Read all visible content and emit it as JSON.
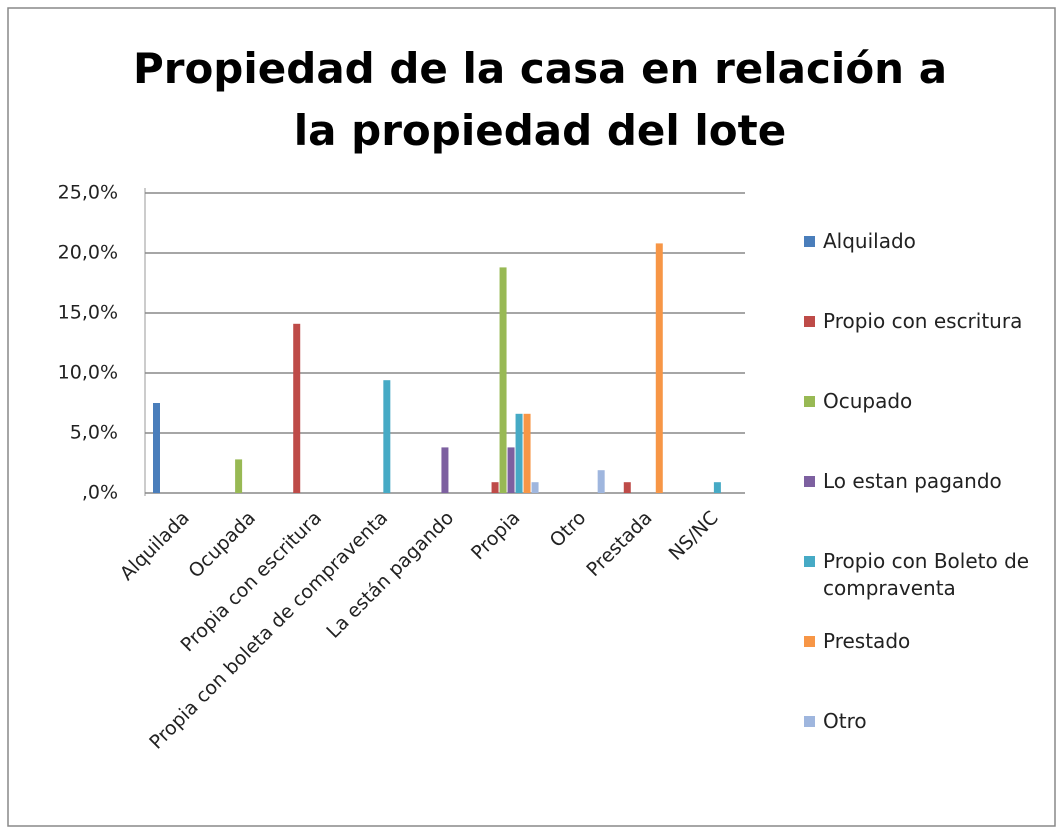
{
  "chart_data": {
    "type": "bar",
    "title": "Propiedad de la casa en relación a la propiedad del lote",
    "categories": [
      "Alquilada",
      "Ocupada",
      "Propia con escritura",
      "Propia con boleta de compraventa",
      "La están pagando",
      "Propia",
      "Otro",
      "Prestada",
      "NS/NC"
    ],
    "series": [
      {
        "name": "Alquilado",
        "color": "#4a7ebb",
        "values": [
          7.5,
          0,
          0,
          0,
          0,
          0,
          0,
          0,
          0
        ]
      },
      {
        "name": "Propio con escritura",
        "color": "#be4b48",
        "values": [
          0,
          0,
          14.1,
          0,
          0,
          0.9,
          0,
          0.9,
          0
        ]
      },
      {
        "name": "Ocupado",
        "color": "#98b954",
        "values": [
          0,
          2.8,
          0,
          0,
          0,
          18.8,
          0,
          0,
          0
        ]
      },
      {
        "name": "Lo estan pagando",
        "color": "#7d60a0",
        "values": [
          0,
          0,
          0,
          0,
          3.8,
          3.8,
          0,
          0,
          0
        ]
      },
      {
        "name": "Propio con Boleto de compraventa",
        "color": "#46aac5",
        "values": [
          0,
          0,
          0,
          9.4,
          0,
          6.6,
          0,
          0,
          0.9
        ]
      },
      {
        "name": "Prestado",
        "color": "#f79646",
        "values": [
          0,
          0,
          0,
          0,
          0,
          6.6,
          0,
          20.8,
          0
        ]
      },
      {
        "name": "Otro",
        "color": "#9fb6de",
        "values": [
          0,
          0,
          0,
          0,
          0,
          0.9,
          1.9,
          0,
          0
        ]
      }
    ],
    "ylim": [
      0,
      25
    ],
    "yticks": [
      {
        "value": 0,
        "label": ",0%"
      },
      {
        "value": 5,
        "label": "5,0%"
      },
      {
        "value": 10,
        "label": "10,0%"
      },
      {
        "value": 15,
        "label": "15,0%"
      },
      {
        "value": 20,
        "label": "20,0%"
      },
      {
        "value": 25,
        "label": "25,0%"
      }
    ],
    "grid": true,
    "legend": "right"
  }
}
